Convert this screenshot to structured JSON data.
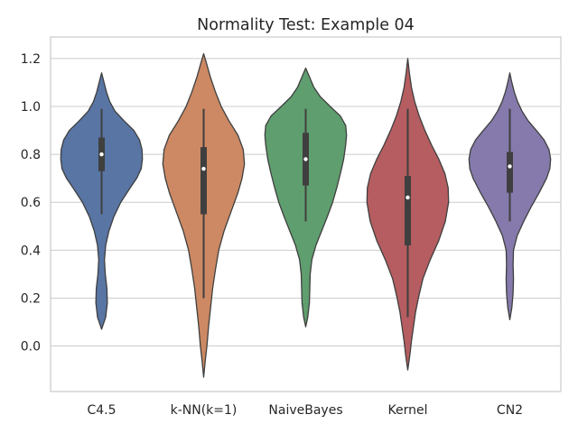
{
  "chart_data": {
    "type": "violin",
    "title": "Normality Test: Example 04",
    "xlabel": "",
    "ylabel": "",
    "ylim": [
      -0.19,
      1.29
    ],
    "yticks": [
      0.0,
      0.2,
      0.4,
      0.6,
      0.8,
      1.0,
      1.2
    ],
    "ytick_labels": [
      "0.0",
      "0.2",
      "0.4",
      "0.6",
      "0.8",
      "1.0",
      "1.2"
    ],
    "grid": true,
    "categories": [
      "C4.5",
      "k-NN(k=1)",
      "NaiveBayes",
      "Kernel",
      "CN2"
    ],
    "violins": [
      {
        "name": "C4.5",
        "color": "#5875a4",
        "min": 0.07,
        "max": 1.14,
        "whisker_low": 0.55,
        "q1": 0.73,
        "median": 0.8,
        "q3": 0.87,
        "whisker_high": 0.99,
        "profile": [
          [
            0.07,
            0.0
          ],
          [
            0.12,
            0.1
          ],
          [
            0.18,
            0.14
          ],
          [
            0.24,
            0.13
          ],
          [
            0.3,
            0.09
          ],
          [
            0.36,
            0.07
          ],
          [
            0.42,
            0.1
          ],
          [
            0.48,
            0.18
          ],
          [
            0.54,
            0.3
          ],
          [
            0.6,
            0.47
          ],
          [
            0.66,
            0.7
          ],
          [
            0.7,
            0.86
          ],
          [
            0.74,
            0.97
          ],
          [
            0.78,
            1.0
          ],
          [
            0.82,
            0.99
          ],
          [
            0.86,
            0.93
          ],
          [
            0.9,
            0.79
          ],
          [
            0.94,
            0.55
          ],
          [
            0.98,
            0.33
          ],
          [
            1.02,
            0.2
          ],
          [
            1.06,
            0.12
          ],
          [
            1.1,
            0.06
          ],
          [
            1.14,
            0.0
          ]
        ]
      },
      {
        "name": "k-NN(k=1)",
        "color": "#cc8963",
        "min": -0.13,
        "max": 1.22,
        "whisker_low": 0.2,
        "q1": 0.55,
        "median": 0.74,
        "q3": 0.83,
        "whisker_high": 0.99,
        "profile": [
          [
            -0.13,
            0.0
          ],
          [
            -0.06,
            0.04
          ],
          [
            0.0,
            0.08
          ],
          [
            0.08,
            0.12
          ],
          [
            0.16,
            0.17
          ],
          [
            0.24,
            0.22
          ],
          [
            0.32,
            0.29
          ],
          [
            0.4,
            0.37
          ],
          [
            0.48,
            0.5
          ],
          [
            0.56,
            0.67
          ],
          [
            0.64,
            0.84
          ],
          [
            0.7,
            0.94
          ],
          [
            0.76,
            1.0
          ],
          [
            0.82,
            0.97
          ],
          [
            0.88,
            0.84
          ],
          [
            0.94,
            0.62
          ],
          [
            1.0,
            0.43
          ],
          [
            1.06,
            0.29
          ],
          [
            1.12,
            0.17
          ],
          [
            1.18,
            0.07
          ],
          [
            1.22,
            0.0
          ]
        ]
      },
      {
        "name": "NaiveBayes",
        "color": "#5f9e6e",
        "min": 0.08,
        "max": 1.16,
        "whisker_low": 0.52,
        "q1": 0.67,
        "median": 0.78,
        "q3": 0.89,
        "whisker_high": 0.99,
        "profile": [
          [
            0.08,
            0.0
          ],
          [
            0.12,
            0.05
          ],
          [
            0.18,
            0.09
          ],
          [
            0.24,
            0.1
          ],
          [
            0.3,
            0.11
          ],
          [
            0.36,
            0.15
          ],
          [
            0.42,
            0.25
          ],
          [
            0.48,
            0.39
          ],
          [
            0.54,
            0.53
          ],
          [
            0.6,
            0.66
          ],
          [
            0.66,
            0.76
          ],
          [
            0.72,
            0.85
          ],
          [
            0.78,
            0.93
          ],
          [
            0.84,
            0.98
          ],
          [
            0.88,
            1.0
          ],
          [
            0.92,
            0.98
          ],
          [
            0.96,
            0.85
          ],
          [
            1.0,
            0.6
          ],
          [
            1.04,
            0.36
          ],
          [
            1.08,
            0.2
          ],
          [
            1.12,
            0.1
          ],
          [
            1.16,
            0.0
          ]
        ]
      },
      {
        "name": "Kernel",
        "color": "#b55d60",
        "min": -0.1,
        "max": 1.2,
        "whisker_low": 0.12,
        "q1": 0.42,
        "median": 0.62,
        "q3": 0.71,
        "whisker_high": 0.99,
        "profile": [
          [
            -0.1,
            0.0
          ],
          [
            -0.04,
            0.05
          ],
          [
            0.02,
            0.09
          ],
          [
            0.08,
            0.14
          ],
          [
            0.14,
            0.19
          ],
          [
            0.2,
            0.26
          ],
          [
            0.28,
            0.37
          ],
          [
            0.36,
            0.55
          ],
          [
            0.44,
            0.76
          ],
          [
            0.52,
            0.92
          ],
          [
            0.6,
            1.0
          ],
          [
            0.66,
            0.99
          ],
          [
            0.72,
            0.91
          ],
          [
            0.78,
            0.76
          ],
          [
            0.84,
            0.58
          ],
          [
            0.9,
            0.42
          ],
          [
            0.96,
            0.28
          ],
          [
            1.02,
            0.17
          ],
          [
            1.08,
            0.09
          ],
          [
            1.14,
            0.04
          ],
          [
            1.2,
            0.0
          ]
        ]
      },
      {
        "name": "CN2",
        "color": "#857aab",
        "min": 0.11,
        "max": 1.14,
        "whisker_low": 0.52,
        "q1": 0.64,
        "median": 0.75,
        "q3": 0.81,
        "whisker_high": 0.99,
        "profile": [
          [
            0.11,
            0.0
          ],
          [
            0.16,
            0.05
          ],
          [
            0.22,
            0.08
          ],
          [
            0.28,
            0.09
          ],
          [
            0.34,
            0.08
          ],
          [
            0.4,
            0.09
          ],
          [
            0.46,
            0.18
          ],
          [
            0.52,
            0.34
          ],
          [
            0.58,
            0.52
          ],
          [
            0.64,
            0.72
          ],
          [
            0.7,
            0.9
          ],
          [
            0.74,
            0.98
          ],
          [
            0.78,
            1.0
          ],
          [
            0.82,
            0.96
          ],
          [
            0.86,
            0.84
          ],
          [
            0.9,
            0.65
          ],
          [
            0.94,
            0.45
          ],
          [
            0.98,
            0.3
          ],
          [
            1.02,
            0.19
          ],
          [
            1.06,
            0.11
          ],
          [
            1.1,
            0.05
          ],
          [
            1.14,
            0.0
          ]
        ]
      }
    ]
  }
}
